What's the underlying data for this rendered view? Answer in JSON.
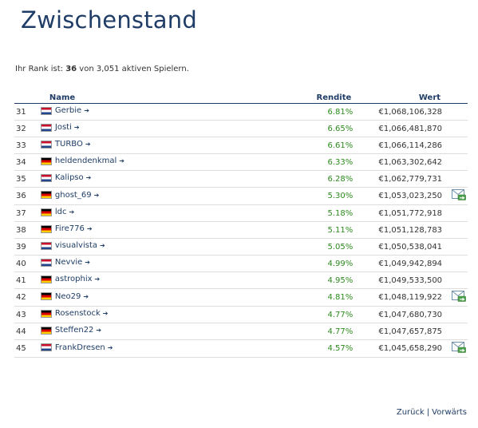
{
  "page": {
    "title": "Zwischenstand",
    "rank_prefix": "Ihr Rank ist: ",
    "rank_value": "36",
    "rank_suffix": " von 3,051 aktiven Spielern."
  },
  "table": {
    "headers": {
      "name": "Name",
      "rendite": "Rendite",
      "wert": "Wert"
    },
    "rows": [
      {
        "rank": "31",
        "flag": "nl",
        "name": "Gerbie",
        "rendite": "6.81%",
        "wert": "€1,068,106,328",
        "message": false
      },
      {
        "rank": "32",
        "flag": "nl",
        "name": "Josti",
        "rendite": "6.65%",
        "wert": "€1,066,481,870",
        "message": false
      },
      {
        "rank": "33",
        "flag": "nl",
        "name": "TURBO",
        "rendite": "6.61%",
        "wert": "€1,066,114,286",
        "message": false
      },
      {
        "rank": "34",
        "flag": "de",
        "name": "heldendenkmal",
        "rendite": "6.33%",
        "wert": "€1,063,302,642",
        "message": false
      },
      {
        "rank": "35",
        "flag": "nl",
        "name": "Kalipso",
        "rendite": "6.28%",
        "wert": "€1,062,779,731",
        "message": false
      },
      {
        "rank": "36",
        "flag": "de",
        "name": "ghost_69",
        "rendite": "5.30%",
        "wert": "€1,053,023,250",
        "message": true
      },
      {
        "rank": "37",
        "flag": "de",
        "name": "ldc",
        "rendite": "5.18%",
        "wert": "€1,051,772,918",
        "message": false
      },
      {
        "rank": "38",
        "flag": "de",
        "name": "Fire776",
        "rendite": "5.11%",
        "wert": "€1,051,128,783",
        "message": false
      },
      {
        "rank": "39",
        "flag": "nl",
        "name": "visualvista",
        "rendite": "5.05%",
        "wert": "€1,050,538,041",
        "message": false
      },
      {
        "rank": "40",
        "flag": "nl",
        "name": "Nevvie",
        "rendite": "4.99%",
        "wert": "€1,049,942,894",
        "message": false
      },
      {
        "rank": "41",
        "flag": "de",
        "name": "astrophix",
        "rendite": "4.95%",
        "wert": "€1,049,533,500",
        "message": false
      },
      {
        "rank": "42",
        "flag": "de",
        "name": "Neo29",
        "rendite": "4.81%",
        "wert": "€1,048,119,922",
        "message": true
      },
      {
        "rank": "43",
        "flag": "de",
        "name": "Rosenstock",
        "rendite": "4.77%",
        "wert": "€1,047,680,730",
        "message": false
      },
      {
        "rank": "44",
        "flag": "de",
        "name": "Steffen22",
        "rendite": "4.77%",
        "wert": "€1,047,657,875",
        "message": false
      },
      {
        "rank": "45",
        "flag": "nl",
        "name": "FrankDresen",
        "rendite": "4.57%",
        "wert": "€1,045,658,290",
        "message": true
      }
    ]
  },
  "pager": {
    "back": "Zurück",
    "separator": "|",
    "forward": "Vorwärts"
  },
  "colors": {
    "title": "#1f3d66",
    "link": "#1f3d66",
    "rendite": "#2d8a1e",
    "row_border": "#dddddd"
  },
  "icons": {
    "player_link": "arrow-right-icon",
    "message": "mail-send-icon"
  }
}
